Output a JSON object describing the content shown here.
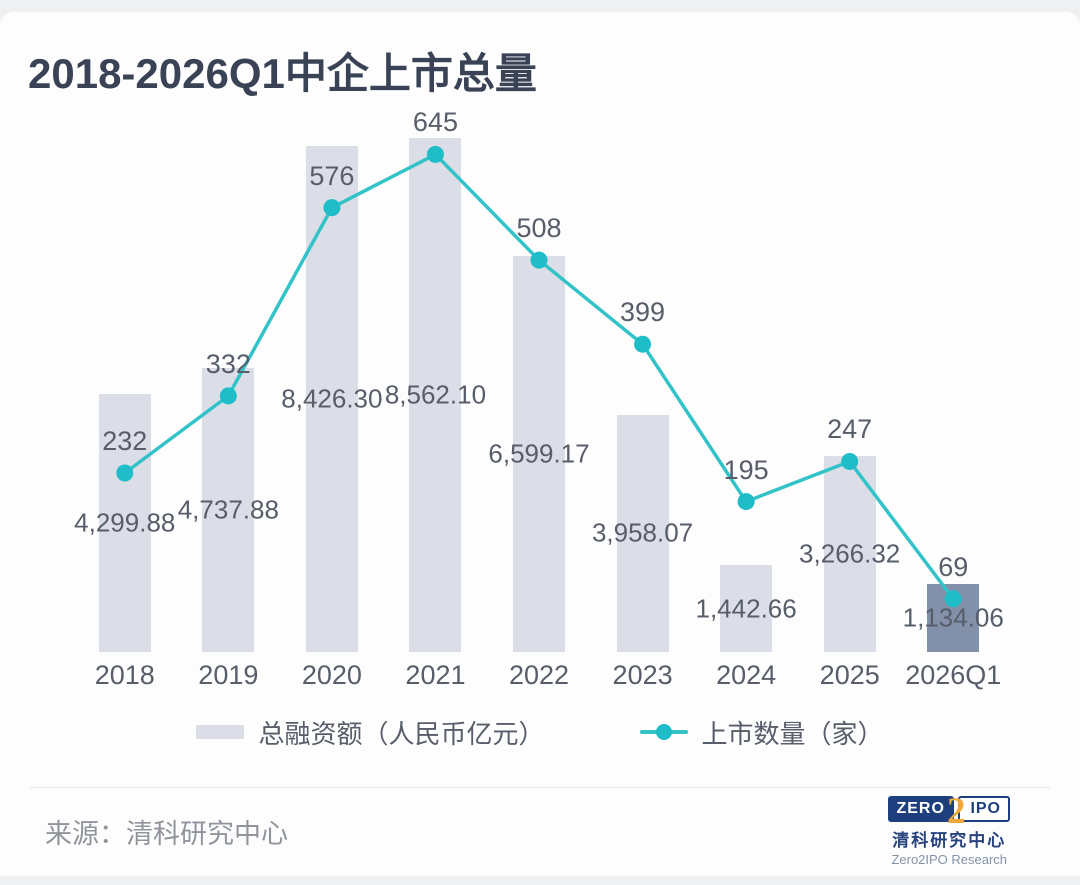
{
  "watermark": "@微信公众号：清科研究",
  "title": "2018-2026Q1中企上市总量",
  "chart_data": {
    "type": "bar",
    "title": "2018-2026Q1中企上市总量",
    "categories": [
      "2018",
      "2019",
      "2020",
      "2021",
      "2022",
      "2023",
      "2024",
      "2025",
      "2026Q1"
    ],
    "series": [
      {
        "name": "总融资额（人民币亿元）",
        "type": "bar",
        "values": [
          4299.88,
          4737.88,
          8426.3,
          8562.1,
          6599.17,
          3958.07,
          1442.66,
          3266.32,
          1134.06
        ],
        "labels": [
          "4,299.88",
          "4,737.88",
          "8,426.30",
          "8,562.10",
          "6,599.17",
          "3,958.07",
          "1,442.66",
          "3,266.32",
          "1,134.06"
        ],
        "axis_max": 9000,
        "color": "#dbdee7",
        "highlight_index": 8,
        "highlight_color": "#8290aa"
      },
      {
        "name": "上市数量（家）",
        "type": "line",
        "values": [
          232,
          332,
          576,
          645,
          508,
          399,
          195,
          247,
          69
        ],
        "labels": [
          "232",
          "332",
          "576",
          "645",
          "508",
          "399",
          "195",
          "247",
          "69"
        ],
        "axis_max": 700,
        "color": "#32c3c9",
        "marker_color": "#1ebdc7"
      }
    ],
    "xlabel": "",
    "ylabel": "",
    "grid": false,
    "legend_position": "bottom",
    "value_labels": "bar labels centered inside bars, line labels above points"
  },
  "footer": {
    "source": "来源：清科研究中心",
    "logo": {
      "zero": "ZERO",
      "two": "2",
      "ipo": "IPO",
      "cn": "清科研究中心",
      "en": "Zero2IPO Research"
    }
  },
  "colors": {
    "bar": "#dbdee7",
    "bar_highlight": "#8290aa",
    "line": "#32c3c9",
    "title_text": "#3a4356",
    "label_text": "#575d69",
    "source_text": "#90959c",
    "logo_navy": "#1e3f7d",
    "logo_gold": "#f2a93b"
  }
}
